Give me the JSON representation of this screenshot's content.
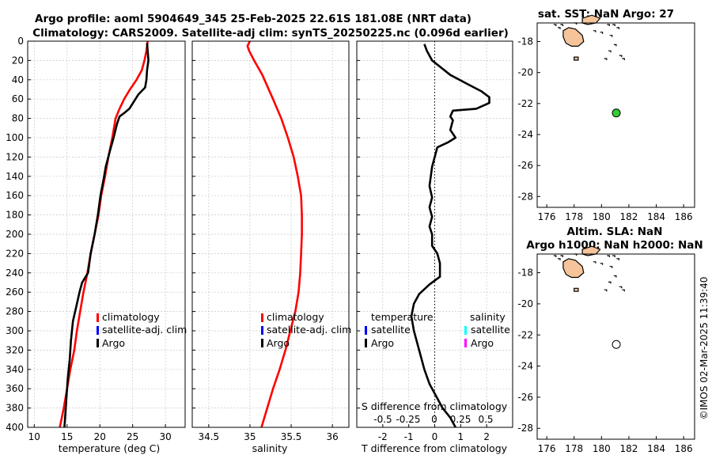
{
  "header": {
    "line1": "Argo profile: aoml 5904649_345 25-Feb-2025 22.61S 181.08E (NRT data)",
    "line2": "Climatology: CARS2009. Satellite-adj clim: synTS_20250225.nc (0.096d earlier)"
  },
  "side_stamp": "©IMOS 02-Mar-2025 11:39:40",
  "colors": {
    "climatology": "#ff0000",
    "satellite": "#0000ff",
    "argo": "#000000",
    "sal_satellite": "#00ffff",
    "sal_argo": "#ff00ff",
    "land": "#f5c49a",
    "marker_fill": "#33cc33"
  },
  "chart_data": [
    {
      "id": "temperature",
      "type": "line",
      "xlabel": "temperature (deg C)",
      "ylabel": "",
      "xlim": [
        9,
        33
      ],
      "ylim": [
        0,
        400
      ],
      "y_reversed": true,
      "xticks": [
        10,
        15,
        20,
        25,
        30
      ],
      "yticks": [
        0,
        20,
        40,
        60,
        80,
        100,
        120,
        140,
        160,
        180,
        200,
        220,
        240,
        260,
        280,
        300,
        320,
        340,
        360,
        380,
        400
      ],
      "grid": true,
      "legend": {
        "placement": "lower-right",
        "entries": [
          "climatology",
          "satellite-adj. clim",
          "Argo"
        ]
      },
      "series": [
        {
          "name": "climatology",
          "color": "#ff0000",
          "points": [
            [
              27.3,
              0
            ],
            [
              27.1,
              10
            ],
            [
              26.8,
              20
            ],
            [
              26.4,
              30
            ],
            [
              25.6,
              40
            ],
            [
              24.6,
              50
            ],
            [
              23.7,
              60
            ],
            [
              23.0,
              70
            ],
            [
              22.4,
              80
            ],
            [
              21.9,
              100
            ],
            [
              21.3,
              120
            ],
            [
              20.8,
              140
            ],
            [
              20.2,
              160
            ],
            [
              19.8,
              180
            ],
            [
              19.2,
              200
            ],
            [
              18.6,
              220
            ],
            [
              18.1,
              240
            ],
            [
              17.5,
              260
            ],
            [
              17.0,
              280
            ],
            [
              16.5,
              300
            ],
            [
              16.1,
              320
            ],
            [
              15.5,
              340
            ],
            [
              15.0,
              360
            ],
            [
              14.5,
              380
            ],
            [
              13.9,
              400
            ]
          ]
        },
        {
          "name": "Argo",
          "color": "#000000",
          "points": [
            [
              27.2,
              2
            ],
            [
              27.4,
              20
            ],
            [
              27.2,
              30
            ],
            [
              27.1,
              40
            ],
            [
              26.9,
              48
            ],
            [
              25.9,
              55
            ],
            [
              24.5,
              70
            ],
            [
              23.8,
              74
            ],
            [
              23.0,
              78
            ],
            [
              22.6,
              86
            ],
            [
              22.1,
              100
            ],
            [
              21.6,
              112
            ],
            [
              20.9,
              130
            ],
            [
              20.6,
              142
            ],
            [
              20.1,
              160
            ],
            [
              19.7,
              180
            ],
            [
              19.2,
              200
            ],
            [
              18.6,
              220
            ],
            [
              18.2,
              240
            ],
            [
              17.3,
              250
            ],
            [
              16.9,
              260
            ],
            [
              16.4,
              275
            ],
            [
              15.9,
              290
            ],
            [
              15.6,
              310
            ],
            [
              15.4,
              330
            ],
            [
              15.1,
              350
            ],
            [
              14.9,
              370
            ],
            [
              14.7,
              390
            ],
            [
              14.6,
              400
            ]
          ]
        }
      ]
    },
    {
      "id": "salinity",
      "type": "line",
      "xlabel": "salinity",
      "ylabel": "",
      "xlim": [
        34.3,
        36.2
      ],
      "ylim": [
        0,
        400
      ],
      "y_reversed": true,
      "xticks": [
        34.5,
        35,
        35.5,
        36
      ],
      "grid": true,
      "legend": {
        "placement": "lower-right",
        "entries": [
          "climatology",
          "satellite-adj. clim",
          "Argo"
        ]
      },
      "series": [
        {
          "name": "climatology",
          "color": "#ff0000",
          "points": [
            [
              35.0,
              0
            ],
            [
              34.97,
              5
            ],
            [
              34.99,
              10
            ],
            [
              35.05,
              20
            ],
            [
              35.15,
              35
            ],
            [
              35.28,
              60
            ],
            [
              35.38,
              80
            ],
            [
              35.46,
              100
            ],
            [
              35.53,
              120
            ],
            [
              35.58,
              140
            ],
            [
              35.62,
              160
            ],
            [
              35.63,
              180
            ],
            [
              35.63,
              200
            ],
            [
              35.62,
              220
            ],
            [
              35.61,
              240
            ],
            [
              35.59,
              260
            ],
            [
              35.55,
              280
            ],
            [
              35.49,
              300
            ],
            [
              35.43,
              320
            ],
            [
              35.36,
              340
            ],
            [
              35.28,
              360
            ],
            [
              35.21,
              380
            ],
            [
              35.14,
              400
            ]
          ]
        }
      ]
    },
    {
      "id": "difference",
      "type": "line",
      "xlabel": "T difference from climatology",
      "xlabel_top": "S difference from climatology",
      "ylabel": "",
      "xlim": [
        -3,
        3
      ],
      "ylim": [
        0,
        400
      ],
      "y_reversed": true,
      "xticks": [
        -2,
        -1,
        0,
        1,
        2
      ],
      "s_ticks": [
        "-0.5",
        "-0.25",
        "0",
        "0.25",
        "0.5"
      ],
      "grid": true,
      "legend": {
        "placement": "lower-right",
        "temperature_heading": "temperature",
        "salinity_heading": "salinity",
        "temperature_entries": [
          "satellite",
          "Argo"
        ],
        "salinity_entries": [
          "satellite",
          "Argo"
        ]
      },
      "series": [
        {
          "name": "Argo",
          "color": "#000000",
          "points": [
            [
              -0.4,
              3
            ],
            [
              -0.3,
              10
            ],
            [
              -0.1,
              20
            ],
            [
              0.6,
              35
            ],
            [
              1.3,
              45
            ],
            [
              1.8,
              52
            ],
            [
              2.1,
              58
            ],
            [
              2.1,
              64
            ],
            [
              1.6,
              70
            ],
            [
              0.7,
              72
            ],
            [
              0.6,
              78
            ],
            [
              0.7,
              82
            ],
            [
              0.6,
              92
            ],
            [
              0.8,
              100
            ],
            [
              0.5,
              105
            ],
            [
              0.1,
              110
            ],
            [
              -0.1,
              130
            ],
            [
              -0.2,
              150
            ],
            [
              -0.1,
              162
            ],
            [
              -0.2,
              172
            ],
            [
              -0.1,
              182
            ],
            [
              -0.2,
              192
            ],
            [
              -0.1,
              200
            ],
            [
              -0.1,
              212
            ],
            [
              0.1,
              220
            ],
            [
              0.2,
              230
            ],
            [
              0.2,
              240
            ],
            [
              0.2,
              244
            ],
            [
              -0.2,
              252
            ],
            [
              -0.6,
              262
            ],
            [
              -0.8,
              272
            ],
            [
              -0.9,
              285
            ],
            [
              -0.8,
              300
            ],
            [
              -0.6,
              320
            ],
            [
              -0.4,
              340
            ],
            [
              -0.2,
              355
            ],
            [
              0.0,
              365
            ],
            [
              0.3,
              380
            ],
            [
              0.6,
              390
            ],
            [
              0.8,
              400
            ]
          ]
        }
      ]
    }
  ],
  "maps": [
    {
      "id": "sst-map",
      "title": "sat. SST: NaN Argo: 27",
      "title_line2": "",
      "xticks": [
        176,
        178,
        180,
        182,
        184,
        186
      ],
      "yticks": [
        -18,
        -20,
        -22,
        -24,
        -26,
        -28
      ],
      "xlim": [
        175.3,
        186.8
      ],
      "ylim": [
        -28.7,
        -16.8
      ],
      "marker": {
        "lon": 181.08,
        "lat": -22.61,
        "filled": true
      }
    },
    {
      "id": "sla-map",
      "title": "Altim. SLA: NaN",
      "title_line2": "Argo h1000: NaN h2000: NaN",
      "xticks": [
        176,
        178,
        180,
        182,
        184,
        186
      ],
      "yticks": [
        -18,
        -20,
        -22,
        -24,
        -26,
        -28
      ],
      "xlim": [
        175.3,
        186.8
      ],
      "ylim": [
        -28.7,
        -16.8
      ],
      "marker": {
        "lon": 181.08,
        "lat": -22.61,
        "filled": false
      }
    }
  ]
}
